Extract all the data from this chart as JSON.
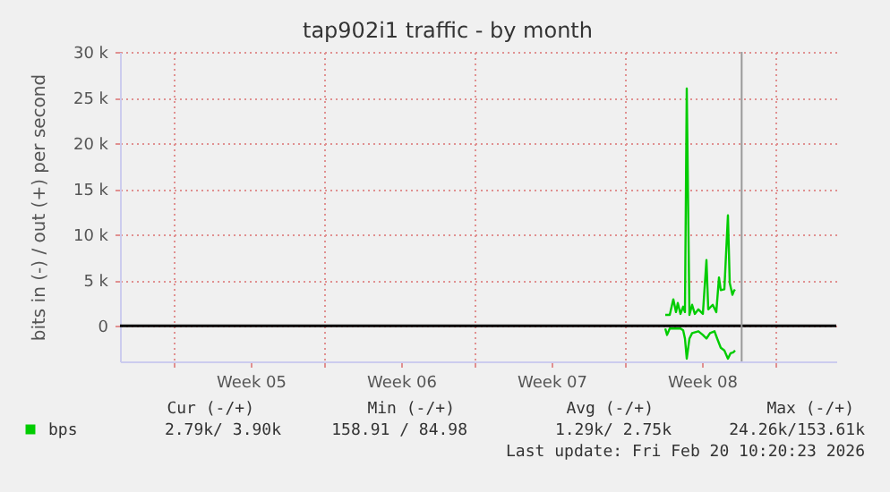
{
  "chart_data": {
    "type": "line",
    "title": "tap902i1 traffic - by month",
    "ylabel": "bits in (-) / out (+) per second",
    "xlim": [
      "2026-01-22T12:00",
      "2026-02-24T20:00"
    ],
    "xticks": [
      {
        "value": "2026-01-25T00:00",
        "label": null
      },
      {
        "value": "2026-02-01T00:00",
        "label": null
      },
      {
        "value": "2026-02-08T00:00",
        "label": null
      },
      {
        "value": "2026-02-15T00:00",
        "label": null
      },
      {
        "value": "2026-02-22T00:00",
        "label": null
      },
      {
        "value": "2026-01-28T14:00",
        "label": "Week 05"
      },
      {
        "value": "2026-02-04T14:00",
        "label": "Week 06"
      },
      {
        "value": "2026-02-11T14:00",
        "label": "Week 07"
      },
      {
        "value": "2026-02-18T14:00",
        "label": "Week 08"
      }
    ],
    "ylim": [
      -3900,
      30000
    ],
    "yticks": [
      {
        "value": 0,
        "label": "0"
      },
      {
        "value": 5000,
        "label": "5 k"
      },
      {
        "value": 10000,
        "label": "10 k"
      },
      {
        "value": 15000,
        "label": "15 k"
      },
      {
        "value": 20000,
        "label": "20 k"
      },
      {
        "value": 25000,
        "label": "25 k"
      },
      {
        "value": 30000,
        "label": "30 k"
      }
    ],
    "grid": true,
    "legend": "bottom",
    "series": [
      {
        "name": "bps",
        "color": "#00cc00",
        "x": [
          "2026-02-16T21:00",
          "2026-02-17T02:00",
          "2026-02-17T06:00",
          "2026-02-17T09:00",
          "2026-02-17T11:00",
          "2026-02-17T14:00",
          "2026-02-17T17:00",
          "2026-02-17T19:00",
          "2026-02-17T21:00",
          "2026-02-18T00:00",
          "2026-02-18T03:00",
          "2026-02-18T06:00",
          "2026-02-18T10:00",
          "2026-02-18T15:00",
          "2026-02-18T19:00",
          "2026-02-18T21:00",
          "2026-02-19T02:00",
          "2026-02-19T06:00",
          "2026-02-19T09:00",
          "2026-02-19T11:00",
          "2026-02-19T15:00",
          "2026-02-19T19:00",
          "2026-02-19T21:00",
          "2026-02-20T00:00",
          "2026-02-20T02:00",
          "2026-02-20T03:00"
        ],
        "values": [
          1200,
          1200,
          2900,
          1500,
          2500,
          1300,
          2100,
          1500,
          26000,
          1200,
          2300,
          1300,
          1800,
          1300,
          7200,
          1800,
          2300,
          1500,
          5300,
          3900,
          4000,
          12100,
          4700,
          3400,
          3900,
          3800
        ]
      },
      {
        "color": "#00cc00",
        "x": [
          "2026-02-16T21:00",
          "2026-02-16T23:00",
          "2026-02-17T02:00",
          "2026-02-17T07:00",
          "2026-02-17T14:00",
          "2026-02-17T17:00",
          "2026-02-17T19:00",
          "2026-02-17T21:00",
          "2026-02-18T00:00",
          "2026-02-18T03:00",
          "2026-02-18T10:00",
          "2026-02-18T15:00",
          "2026-02-18T19:00",
          "2026-02-18T23:00",
          "2026-02-19T04:00",
          "2026-02-19T07:00",
          "2026-02-19T11:00",
          "2026-02-19T15:00",
          "2026-02-19T19:00",
          "2026-02-19T22:00",
          "2026-02-20T01:00",
          "2026-02-20T03:00"
        ],
        "values": [
          -300,
          -1000,
          -300,
          -300,
          -300,
          -500,
          -1400,
          -3600,
          -1400,
          -800,
          -600,
          -1000,
          -1400,
          -800,
          -600,
          -1400,
          -2400,
          -2700,
          -3600,
          -3000,
          -2900,
          -2700
        ]
      }
    ],
    "ref_lines": [
      {
        "axis": "y",
        "value": 0,
        "color": "#000000"
      },
      {
        "axis": "x",
        "value": "2026-02-20T10:20",
        "color": "#999999"
      }
    ],
    "annotations": [
      "Cur (-/+)",
      "Min (-/+)",
      "Avg (-/+)",
      "Max (-/+)",
      "2.79k/  3.90k",
      "158.91 / 84.98",
      "1.29k/  2.75k",
      "24.26k/153.61k",
      "Last update: Fri Feb 20 10:20:23 2026"
    ]
  }
}
